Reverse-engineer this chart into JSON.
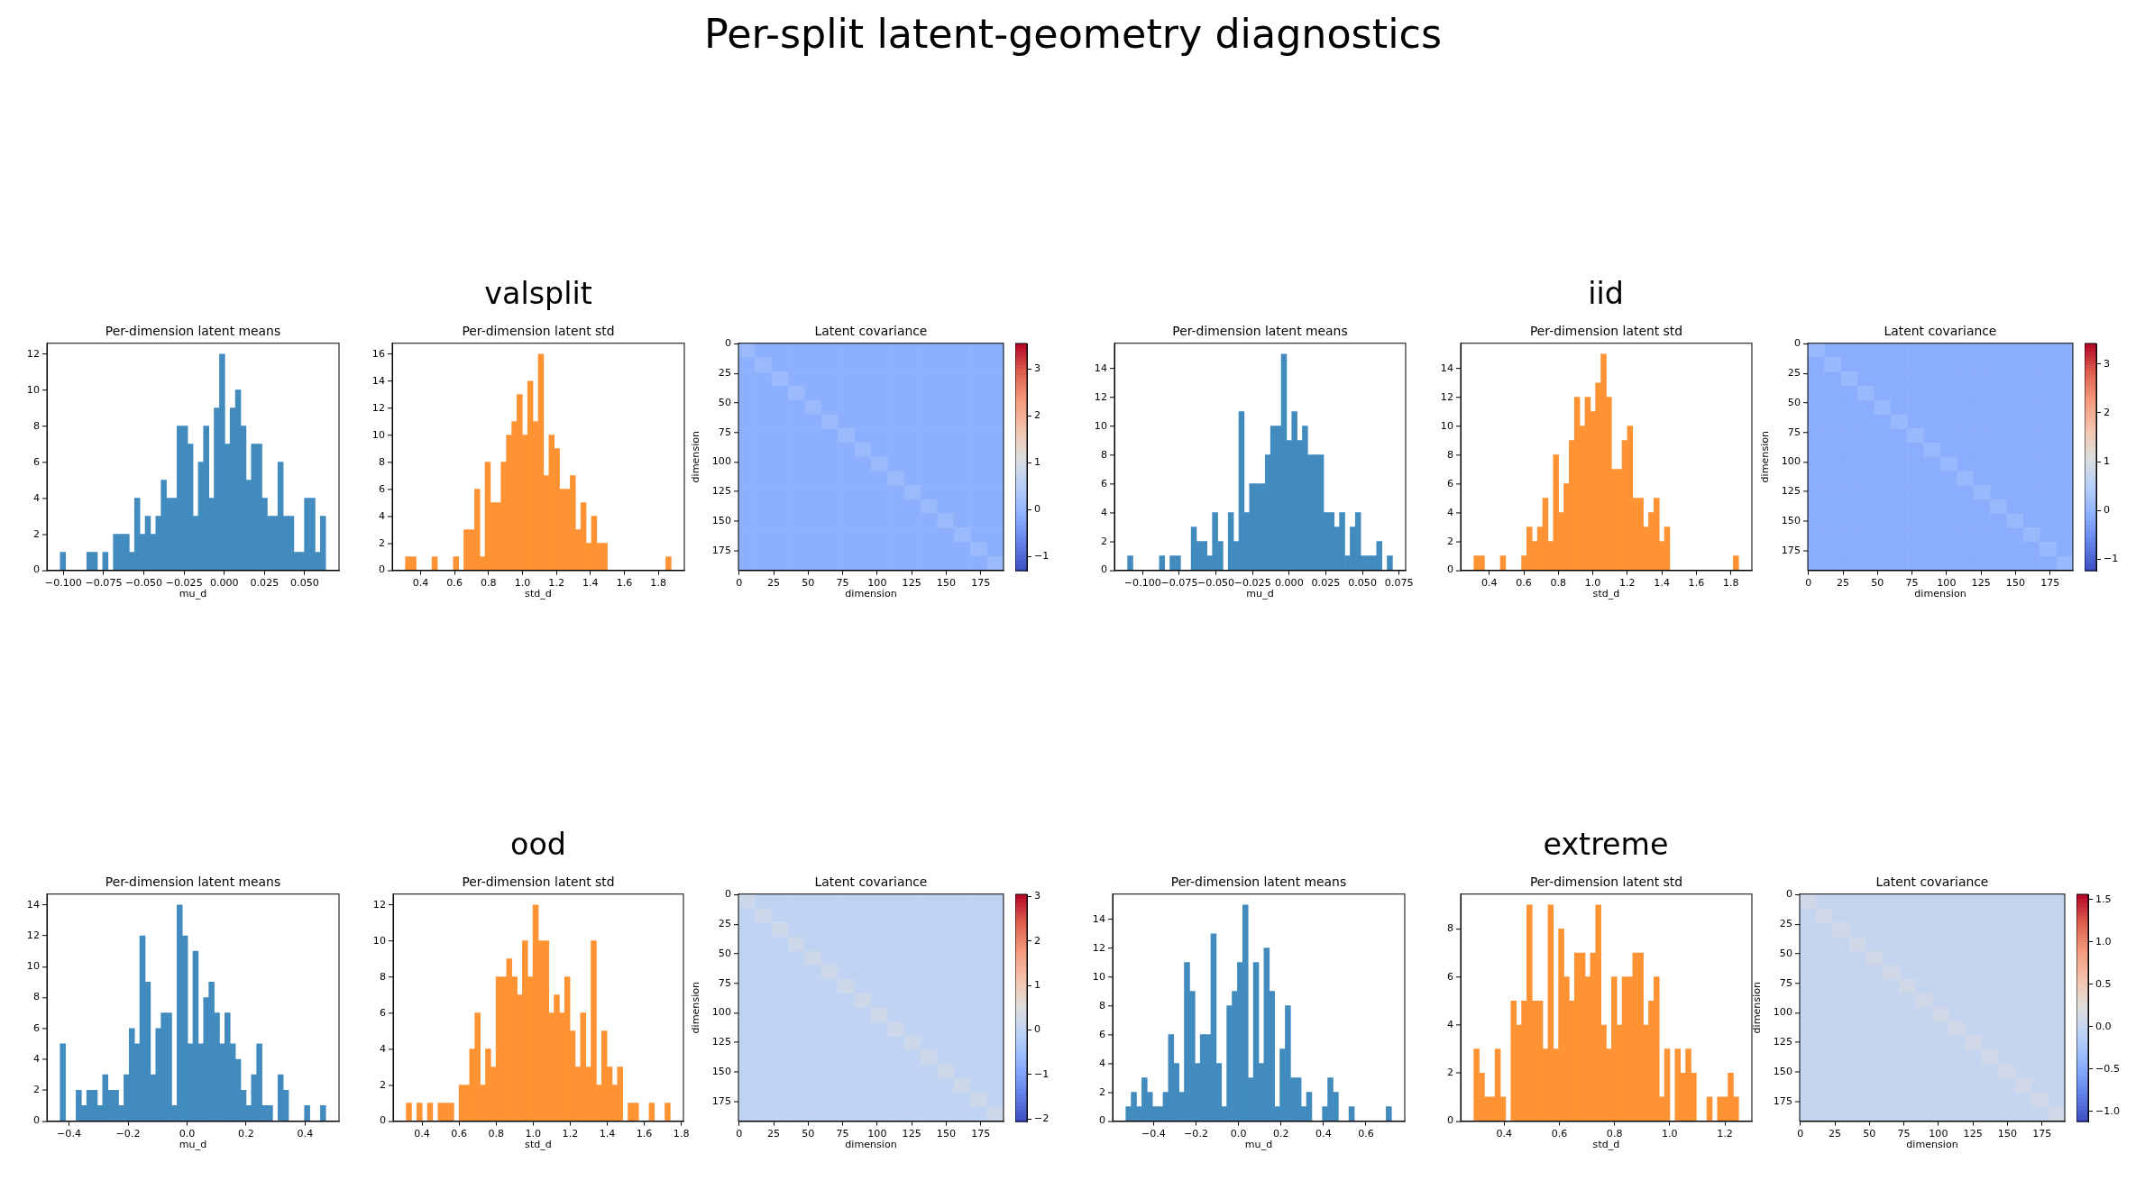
{
  "chart_data": [
    {
      "type": "other",
      "title": "Per-split latent-geometry diagnostics"
    },
    {
      "type": "other",
      "title": "valsplit"
    },
    {
      "type": "other",
      "title": "iid"
    },
    {
      "type": "histogram",
      "title": "Per-dimension latent means",
      "xlabel": "mu_d",
      "color": "#418bbf",
      "bins": [
        -0.102,
        -0.0987,
        -0.0954,
        -0.0921,
        -0.0888,
        -0.0855,
        -0.0822,
        -0.0789,
        -0.0756,
        -0.0723,
        -0.069,
        -0.0657,
        -0.0624,
        -0.0591,
        -0.0558,
        -0.0525,
        -0.0492,
        -0.0459,
        -0.0426,
        -0.0393,
        -0.036,
        -0.0327,
        -0.0294,
        -0.0261,
        -0.0228,
        -0.0195,
        -0.0162,
        -0.0129,
        -0.0096,
        -0.0063,
        -0.003,
        0.0003,
        0.0036,
        0.0069,
        0.0102,
        0.0135,
        0.0168,
        0.0201,
        0.0234,
        0.0267,
        0.03,
        0.0333,
        0.0366,
        0.0399,
        0.0432,
        0.0465,
        0.0498,
        0.0531,
        0.0564,
        0.0597,
        0.063
      ],
      "values": [
        1,
        0,
        0,
        0,
        0,
        1,
        1,
        0,
        1,
        0,
        2,
        2,
        2,
        1,
        4,
        2,
        3,
        2,
        3,
        5,
        4,
        4,
        8,
        8,
        7,
        3,
        6,
        8,
        4,
        9,
        12,
        7,
        9,
        10,
        8,
        5,
        7,
        7,
        4,
        3,
        3,
        6,
        3,
        3,
        1,
        1,
        4,
        4,
        1,
        3
      ],
      "xlim": [
        -0.1103,
        0.0713
      ],
      "ylim": [
        0,
        12.6
      ],
      "xticks": [
        {
          "value": -0.1,
          "label": "−0.100"
        },
        {
          "value": -0.075,
          "label": "−0.075"
        },
        {
          "value": -0.05,
          "label": "−0.050"
        },
        {
          "value": -0.025,
          "label": "−0.025"
        },
        {
          "value": 0,
          "label": "0.000"
        },
        {
          "value": 0.025,
          "label": "0.025"
        },
        {
          "value": 0.05,
          "label": "0.050"
        }
      ],
      "yticks": [
        0,
        2,
        4,
        6,
        8,
        10,
        12
      ]
    },
    {
      "type": "histogram",
      "title": "Per-dimension latent std",
      "xlabel": "std_d",
      "color": "#ff9232",
      "bins": [
        0.311,
        0.342,
        0.374,
        0.405,
        0.436,
        0.467,
        0.499,
        0.53,
        0.561,
        0.593,
        0.624,
        0.655,
        0.686,
        0.718,
        0.749,
        0.78,
        0.811,
        0.843,
        0.874,
        0.905,
        0.937,
        0.968,
        0.999,
        1.03,
        1.062,
        1.093,
        1.124,
        1.156,
        1.187,
        1.218,
        1.249,
        1.281,
        1.312,
        1.343,
        1.375,
        1.406,
        1.437,
        1.468,
        1.5,
        1.531,
        1.562,
        1.593,
        1.625,
        1.656,
        1.687,
        1.719,
        1.75,
        1.781,
        1.812,
        1.844,
        1.875
      ],
      "values": [
        1,
        1,
        0,
        0,
        0,
        1,
        0,
        0,
        0,
        1,
        0,
        3,
        3,
        6,
        1,
        8,
        5,
        5,
        8,
        10,
        11,
        13,
        10,
        14,
        11,
        16,
        7,
        10,
        9,
        6,
        6,
        7,
        3,
        5,
        2,
        4,
        2,
        2,
        0,
        0,
        0,
        0,
        0,
        0,
        0,
        0,
        0,
        0,
        0,
        1
      ],
      "xlim": [
        0.233,
        1.953
      ],
      "ylim": [
        0,
        16.8
      ],
      "xticks": [
        0.4,
        0.6,
        0.8,
        {
          "value": 1,
          "label": "1.0"
        },
        1.2,
        1.4,
        1.6,
        1.8
      ],
      "yticks": [
        0,
        2,
        4,
        6,
        8,
        10,
        12,
        14,
        16
      ]
    },
    {
      "type": "heatmap",
      "title": "Latent covariance",
      "xlabel": "dimension",
      "ylabel": "dimension",
      "cells": [
        [
          0.1,
          -0.1,
          -0.1,
          -0.1,
          -0.1,
          -0.1,
          -0.1,
          -0.1,
          -0.1,
          -0.1,
          -0.1,
          -0.1,
          -0.1,
          -0.1,
          -0.1,
          -0.1
        ],
        [
          -0.1,
          0.1,
          -0.1,
          -0.1,
          -0.1,
          -0.1,
          -0.1,
          -0.1,
          -0.1,
          -0.1,
          -0.1,
          -0.1,
          -0.1,
          -0.1,
          -0.1,
          -0.1
        ],
        [
          -0.1,
          -0.1,
          0.1,
          -0.1,
          -0.1,
          -0.1,
          -0.1,
          -0.1,
          -0.1,
          -0.1,
          -0.1,
          -0.1,
          -0.1,
          -0.1,
          -0.1,
          -0.1
        ],
        [
          -0.1,
          -0.1,
          -0.1,
          0.1,
          -0.1,
          -0.1,
          -0.1,
          -0.1,
          -0.1,
          -0.1,
          -0.1,
          -0.1,
          -0.1,
          -0.1,
          -0.1,
          -0.1
        ],
        [
          -0.1,
          -0.1,
          -0.1,
          -0.1,
          0.1,
          -0.1,
          -0.1,
          -0.1,
          -0.1,
          -0.1,
          -0.1,
          -0.1,
          -0.1,
          -0.1,
          -0.1,
          -0.1
        ],
        [
          -0.1,
          -0.1,
          -0.1,
          -0.1,
          -0.1,
          0.1,
          -0.1,
          -0.1,
          -0.1,
          -0.1,
          -0.1,
          -0.1,
          -0.1,
          -0.1,
          -0.1,
          -0.1
        ],
        [
          -0.1,
          -0.1,
          -0.1,
          -0.1,
          -0.1,
          -0.1,
          0.1,
          -0.1,
          -0.1,
          -0.1,
          -0.1,
          -0.1,
          -0.1,
          -0.1,
          -0.1,
          -0.1
        ],
        [
          -0.1,
          -0.1,
          -0.1,
          -0.1,
          -0.1,
          -0.1,
          -0.1,
          0.1,
          -0.1,
          -0.1,
          -0.1,
          -0.1,
          -0.1,
          -0.1,
          -0.1,
          -0.1
        ],
        [
          -0.1,
          -0.1,
          -0.1,
          -0.1,
          -0.1,
          -0.1,
          -0.1,
          -0.1,
          0.1,
          -0.1,
          -0.1,
          -0.1,
          -0.1,
          -0.1,
          -0.1,
          -0.1
        ],
        [
          -0.1,
          -0.1,
          -0.1,
          -0.1,
          -0.1,
          -0.1,
          -0.1,
          -0.1,
          -0.1,
          0.1,
          -0.1,
          -0.1,
          -0.1,
          -0.1,
          -0.1,
          -0.1
        ],
        [
          -0.1,
          -0.1,
          -0.1,
          -0.1,
          -0.1,
          -0.1,
          -0.1,
          -0.1,
          -0.1,
          -0.1,
          0.1,
          -0.1,
          -0.1,
          -0.1,
          -0.1,
          -0.1
        ],
        [
          -0.1,
          -0.1,
          -0.1,
          -0.1,
          -0.1,
          -0.1,
          -0.1,
          -0.1,
          -0.1,
          -0.1,
          -0.1,
          0.1,
          -0.1,
          -0.1,
          -0.1,
          -0.1
        ],
        [
          -0.1,
          -0.1,
          -0.1,
          -0.1,
          -0.1,
          -0.1,
          -0.1,
          -0.1,
          -0.1,
          -0.1,
          -0.1,
          -0.1,
          0.1,
          -0.1,
          -0.1,
          -0.1
        ],
        [
          -0.1,
          -0.1,
          -0.1,
          -0.1,
          -0.1,
          -0.1,
          -0.1,
          -0.1,
          -0.1,
          -0.1,
          -0.1,
          -0.1,
          -0.1,
          0.1,
          -0.1,
          -0.1
        ],
        [
          -0.1,
          -0.1,
          -0.1,
          -0.1,
          -0.1,
          -0.1,
          -0.1,
          -0.1,
          -0.1,
          -0.1,
          -0.1,
          -0.1,
          -0.1,
          -0.1,
          0.1,
          -0.1
        ],
        [
          -0.1,
          -0.1,
          -0.1,
          -0.1,
          -0.1,
          -0.1,
          -0.1,
          -0.1,
          -0.1,
          -0.1,
          -0.1,
          -0.1,
          -0.1,
          -0.1,
          -0.1,
          0.1
        ]
      ],
      "xlim": [
        -0.5,
        191.5
      ],
      "ylim": [
        191.5,
        -0.5
      ],
      "xticks": [
        0,
        25,
        50,
        75,
        100,
        125,
        150,
        175
      ],
      "yticks": [
        0,
        25,
        50,
        75,
        100,
        125,
        150,
        175
      ],
      "clim": [
        -1.3,
        3.54
      ],
      "cticks": [
        {
          "value": -1,
          "label": "−1"
        },
        0,
        1,
        2,
        3
      ]
    },
    {
      "type": "histogram",
      "title": "Per-dimension latent means",
      "xlabel": "mu_d",
      "color": "#418bbf",
      "bins": [
        -0.1103,
        -0.1067,
        -0.1031,
        -0.0995,
        -0.0958,
        -0.0922,
        -0.0886,
        -0.085,
        -0.0814,
        -0.0778,
        -0.0741,
        -0.0705,
        -0.0669,
        -0.0633,
        -0.0597,
        -0.0561,
        -0.0524,
        -0.0488,
        -0.0452,
        -0.0416,
        -0.038,
        -0.0344,
        -0.0307,
        -0.0271,
        -0.0235,
        -0.0199,
        -0.0163,
        -0.0127,
        -0.0091,
        -0.0054,
        -0.0018,
        0.0018,
        0.0054,
        0.009,
        0.0126,
        0.0163,
        0.0199,
        0.0235,
        0.0271,
        0.0307,
        0.0343,
        0.038,
        0.0416,
        0.0452,
        0.0488,
        0.0524,
        0.056,
        0.0597,
        0.0633,
        0.0669,
        0.0705
      ],
      "values": [
        1,
        0,
        0,
        0,
        0,
        0,
        1,
        0,
        1,
        1,
        0,
        0,
        3,
        2,
        2,
        1,
        4,
        2,
        0,
        4,
        2,
        11,
        4,
        6,
        6,
        6,
        8,
        10,
        10,
        15,
        9,
        11,
        9,
        10,
        8,
        8,
        8,
        4,
        4,
        3,
        4,
        1,
        3,
        4,
        1,
        1,
        1,
        2,
        0,
        1
      ],
      "xlim": [
        -0.1193,
        0.0795
      ],
      "ylim": [
        0,
        15.75
      ],
      "xticks": [
        {
          "value": -0.1,
          "label": "−0.100"
        },
        {
          "value": -0.075,
          "label": "−0.075"
        },
        {
          "value": -0.05,
          "label": "−0.050"
        },
        {
          "value": -0.025,
          "label": "−0.025"
        },
        {
          "value": 0,
          "label": "0.000"
        },
        {
          "value": 0.025,
          "label": "0.025"
        },
        {
          "value": 0.05,
          "label": "0.050"
        },
        {
          "value": 0.075,
          "label": "0.075"
        }
      ],
      "yticks": [
        0,
        2,
        4,
        6,
        8,
        10,
        12,
        14
      ]
    },
    {
      "type": "histogram",
      "title": "Per-dimension latent std",
      "xlabel": "std_d",
      "color": "#ff9232",
      "bins": [
        0.311,
        0.342,
        0.372,
        0.403,
        0.434,
        0.464,
        0.495,
        0.526,
        0.556,
        0.587,
        0.618,
        0.648,
        0.679,
        0.71,
        0.74,
        0.771,
        0.802,
        0.832,
        0.863,
        0.894,
        0.924,
        0.955,
        0.986,
        1.016,
        1.047,
        1.078,
        1.108,
        1.139,
        1.17,
        1.2,
        1.231,
        1.262,
        1.293,
        1.323,
        1.354,
        1.385,
        1.415,
        1.446,
        1.477,
        1.507,
        1.538,
        1.569,
        1.599,
        1.63,
        1.661,
        1.691,
        1.722,
        1.753,
        1.783,
        1.814,
        1.845
      ],
      "values": [
        1,
        1,
        0,
        0,
        0,
        1,
        0,
        0,
        0,
        1,
        3,
        2,
        3,
        5,
        2,
        8,
        4,
        6,
        9,
        12,
        10,
        12,
        11,
        13,
        15,
        12,
        7,
        7,
        9,
        10,
        5,
        5,
        3,
        4,
        5,
        2,
        3,
        0,
        0,
        0,
        0,
        0,
        0,
        0,
        0,
        0,
        0,
        0,
        0,
        1
      ],
      "xlim": [
        0.2343,
        1.9217
      ],
      "ylim": [
        0,
        15.75
      ],
      "xticks": [
        0.4,
        0.6,
        0.8,
        {
          "value": 1,
          "label": "1.0"
        },
        1.2,
        1.4,
        1.6,
        1.8
      ],
      "yticks": [
        0,
        2,
        4,
        6,
        8,
        10,
        12,
        14
      ]
    },
    {
      "type": "heatmap",
      "title": "Latent covariance",
      "xlabel": "dimension",
      "ylabel": "dimension",
      "cells": [
        [
          0.1,
          -0.1,
          -0.1,
          -0.1,
          -0.1,
          -0.1,
          -0.1,
          -0.1,
          -0.1,
          -0.1,
          -0.1,
          -0.1,
          -0.1,
          -0.1,
          -0.1,
          -0.1
        ],
        [
          -0.1,
          0.1,
          -0.1,
          -0.1,
          -0.1,
          -0.1,
          -0.1,
          -0.1,
          -0.1,
          -0.1,
          -0.1,
          -0.1,
          -0.1,
          -0.1,
          -0.1,
          -0.1
        ],
        [
          -0.1,
          -0.1,
          0.1,
          -0.1,
          -0.1,
          -0.1,
          -0.1,
          -0.1,
          -0.1,
          -0.1,
          -0.1,
          -0.1,
          -0.1,
          -0.1,
          -0.1,
          -0.1
        ],
        [
          -0.1,
          -0.1,
          -0.1,
          0.1,
          -0.1,
          -0.1,
          -0.1,
          -0.1,
          -0.1,
          -0.1,
          -0.1,
          -0.1,
          -0.1,
          -0.1,
          -0.1,
          -0.1
        ],
        [
          -0.1,
          -0.1,
          -0.1,
          -0.1,
          0.1,
          -0.1,
          -0.1,
          -0.1,
          -0.1,
          -0.1,
          -0.1,
          -0.1,
          -0.1,
          -0.1,
          -0.1,
          -0.1
        ],
        [
          -0.1,
          -0.1,
          -0.1,
          -0.1,
          -0.1,
          0.1,
          -0.1,
          -0.1,
          -0.1,
          -0.1,
          -0.1,
          -0.1,
          -0.1,
          -0.1,
          -0.1,
          -0.1
        ],
        [
          -0.1,
          -0.1,
          -0.1,
          -0.1,
          -0.1,
          -0.1,
          0.1,
          -0.1,
          -0.1,
          -0.1,
          -0.1,
          -0.1,
          -0.1,
          -0.1,
          -0.1,
          -0.1
        ],
        [
          -0.1,
          -0.1,
          -0.1,
          -0.1,
          -0.1,
          -0.1,
          -0.1,
          0.1,
          -0.1,
          -0.1,
          -0.1,
          -0.1,
          -0.1,
          -0.1,
          -0.1,
          -0.1
        ],
        [
          -0.1,
          -0.1,
          -0.1,
          -0.1,
          -0.1,
          -0.1,
          -0.1,
          -0.1,
          0.1,
          -0.1,
          -0.1,
          -0.1,
          -0.1,
          -0.1,
          -0.1,
          -0.1
        ],
        [
          -0.1,
          -0.1,
          -0.1,
          -0.1,
          -0.1,
          -0.1,
          -0.1,
          -0.1,
          -0.1,
          0.1,
          -0.1,
          -0.1,
          -0.1,
          -0.1,
          -0.1,
          -0.1
        ],
        [
          -0.1,
          -0.1,
          -0.1,
          -0.1,
          -0.1,
          -0.1,
          -0.1,
          -0.1,
          -0.1,
          -0.1,
          0.1,
          -0.1,
          -0.1,
          -0.1,
          -0.1,
          -0.1
        ],
        [
          -0.1,
          -0.1,
          -0.1,
          -0.1,
          -0.1,
          -0.1,
          -0.1,
          -0.1,
          -0.1,
          -0.1,
          -0.1,
          0.1,
          -0.1,
          -0.1,
          -0.1,
          -0.1
        ],
        [
          -0.1,
          -0.1,
          -0.1,
          -0.1,
          -0.1,
          -0.1,
          -0.1,
          -0.1,
          -0.1,
          -0.1,
          -0.1,
          -0.1,
          0.1,
          -0.1,
          -0.1,
          -0.1
        ],
        [
          -0.1,
          -0.1,
          -0.1,
          -0.1,
          -0.1,
          -0.1,
          -0.1,
          -0.1,
          -0.1,
          -0.1,
          -0.1,
          -0.1,
          -0.1,
          0.1,
          -0.1,
          -0.1
        ],
        [
          -0.1,
          -0.1,
          -0.1,
          -0.1,
          -0.1,
          -0.1,
          -0.1,
          -0.1,
          -0.1,
          -0.1,
          -0.1,
          -0.1,
          -0.1,
          -0.1,
          0.1,
          -0.1
        ],
        [
          -0.1,
          -0.1,
          -0.1,
          -0.1,
          -0.1,
          -0.1,
          -0.1,
          -0.1,
          -0.1,
          -0.1,
          -0.1,
          -0.1,
          -0.1,
          -0.1,
          -0.1,
          0.1
        ]
      ],
      "xlim": [
        -0.5,
        191.5
      ],
      "ylim": [
        191.5,
        -0.5
      ],
      "xticks": [
        0,
        25,
        50,
        75,
        100,
        125,
        150,
        175
      ],
      "yticks": [
        0,
        25,
        50,
        75,
        100,
        125,
        150,
        175
      ],
      "clim": [
        -1.23,
        3.42
      ],
      "cticks": [
        {
          "value": -1,
          "label": "−1"
        },
        0,
        1,
        2,
        3
      ]
    },
    {
      "type": "other",
      "title": "ood"
    },
    {
      "type": "other",
      "title": "extreme"
    },
    {
      "type": "histogram",
      "title": "Per-dimension latent means",
      "xlabel": "mu_d",
      "color": "#418bbf",
      "bins": [
        -0.43,
        -0.412,
        -0.394,
        -0.376,
        -0.358,
        -0.34,
        -0.322,
        -0.304,
        -0.286,
        -0.268,
        -0.25,
        -0.232,
        -0.214,
        -0.196,
        -0.178,
        -0.16,
        -0.142,
        -0.124,
        -0.106,
        -0.088,
        -0.07,
        -0.052,
        -0.034,
        -0.016,
        0.002,
        0.02,
        0.038,
        0.056,
        0.074,
        0.092,
        0.11,
        0.128,
        0.146,
        0.164,
        0.182,
        0.2,
        0.218,
        0.236,
        0.254,
        0.272,
        0.29,
        0.308,
        0.326,
        0.344,
        0.362,
        0.38,
        0.398,
        0.416,
        0.434,
        0.452,
        0.47
      ],
      "values": [
        5,
        0,
        0,
        2,
        1,
        2,
        2,
        1,
        3,
        2,
        2,
        1,
        3,
        6,
        5,
        12,
        9,
        3,
        6,
        7,
        7,
        1,
        14,
        12,
        5,
        11,
        5,
        8,
        9,
        7,
        5,
        7,
        5,
        4,
        2,
        1,
        3,
        5,
        1,
        1,
        0,
        3,
        2,
        0,
        0,
        0,
        1,
        0,
        0,
        1
      ],
      "xlim": [
        -0.475,
        0.515
      ],
      "ylim": [
        0,
        14.7
      ],
      "xticks": [
        {
          "value": -0.4,
          "label": "−0.4"
        },
        {
          "value": -0.2,
          "label": "−0.2"
        },
        {
          "value": 0,
          "label": "0.0"
        },
        0.2,
        0.4
      ],
      "yticks": [
        0,
        2,
        4,
        6,
        8,
        10,
        12,
        14
      ]
    },
    {
      "type": "histogram",
      "title": "Per-dimension latent std",
      "xlabel": "std_d",
      "color": "#ff9232",
      "bins": [
        0.315,
        0.3435,
        0.372,
        0.4005,
        0.429,
        0.4575,
        0.486,
        0.5145,
        0.543,
        0.5715,
        0.6,
        0.6285,
        0.657,
        0.6855,
        0.714,
        0.7425,
        0.771,
        0.7995,
        0.828,
        0.8565,
        0.885,
        0.9135,
        0.942,
        0.9705,
        0.999,
        1.0275,
        1.056,
        1.0845,
        1.113,
        1.1415,
        1.17,
        1.1985,
        1.227,
        1.2555,
        1.284,
        1.3125,
        1.341,
        1.3695,
        1.398,
        1.4265,
        1.455,
        1.4835,
        1.512,
        1.5405,
        1.569,
        1.5975,
        1.626,
        1.6545,
        1.683,
        1.7115,
        1.74
      ],
      "values": [
        1,
        0,
        1,
        0,
        1,
        0,
        1,
        1,
        1,
        0,
        2,
        2,
        4,
        6,
        2,
        4,
        3,
        8,
        8,
        9,
        8,
        7,
        10,
        8,
        12,
        10,
        10,
        6,
        7,
        6,
        8,
        5,
        3,
        6,
        3,
        10,
        2,
        5,
        3,
        2,
        3,
        0,
        1,
        1,
        0,
        0,
        1,
        0,
        0,
        1
      ],
      "xlim": [
        0.2438,
        1.8113
      ],
      "ylim": [
        0,
        12.6
      ],
      "xticks": [
        0.4,
        0.6,
        0.8,
        {
          "value": 1,
          "label": "1.0"
        },
        1.2,
        1.4,
        1.6,
        1.8
      ],
      "yticks": [
        0,
        2,
        4,
        6,
        8,
        10,
        12
      ]
    },
    {
      "type": "heatmap",
      "title": "Latent covariance",
      "xlabel": "dimension",
      "ylabel": "dimension",
      "cells": [
        [
          0.2,
          0,
          0,
          0,
          0,
          0,
          0,
          0,
          0,
          0,
          0,
          0,
          0,
          0,
          0,
          0
        ],
        [
          0,
          0.2,
          0,
          0,
          0,
          0,
          0,
          0,
          0,
          0,
          0,
          0,
          0,
          0,
          0,
          0
        ],
        [
          0,
          0,
          0.2,
          0,
          0,
          0,
          0,
          0,
          0,
          0,
          0,
          0,
          0,
          0,
          0,
          0
        ],
        [
          0,
          0,
          0,
          0.2,
          0,
          0,
          0,
          0,
          0,
          0,
          0,
          0,
          0,
          0,
          0,
          0
        ],
        [
          0,
          0,
          0,
          0,
          0.2,
          0,
          0,
          0,
          0,
          0,
          0,
          0,
          0,
          0,
          0,
          0
        ],
        [
          0,
          0,
          0,
          0,
          0,
          0.2,
          0,
          0,
          0,
          0,
          0,
          0,
          0,
          0,
          0,
          0
        ],
        [
          0,
          0,
          0,
          0,
          0,
          0,
          0.2,
          0,
          0,
          0,
          0,
          0,
          0,
          0,
          0,
          0
        ],
        [
          0,
          0,
          0,
          0,
          0,
          0,
          0,
          0.2,
          0,
          0,
          0,
          0,
          0,
          0,
          0,
          0
        ],
        [
          0,
          0,
          0,
          0,
          0,
          0,
          0,
          0,
          0.2,
          0,
          0,
          0,
          0,
          0,
          0,
          0
        ],
        [
          0,
          0,
          0,
          0,
          0,
          0,
          0,
          0,
          0,
          0.2,
          0,
          0,
          0,
          0,
          0,
          0
        ],
        [
          0,
          0,
          0,
          0,
          0,
          0,
          0,
          0,
          0,
          0,
          0.2,
          0,
          0,
          0,
          0,
          0
        ],
        [
          0,
          0,
          0,
          0,
          0,
          0,
          0,
          0,
          0,
          0,
          0,
          0.2,
          0,
          0,
          0,
          0
        ],
        [
          0,
          0,
          0,
          0,
          0,
          0,
          0,
          0,
          0,
          0,
          0,
          0,
          0.2,
          0,
          0,
          0
        ],
        [
          0,
          0,
          0,
          0,
          0,
          0,
          0,
          0,
          0,
          0,
          0,
          0,
          0,
          0.2,
          0,
          0
        ],
        [
          0,
          0,
          0,
          0,
          0,
          0,
          0,
          0,
          0,
          0,
          0,
          0,
          0,
          0,
          0.2,
          0
        ],
        [
          0,
          0,
          0,
          0,
          0,
          0,
          0,
          0,
          0,
          0,
          0,
          0,
          0,
          0,
          0,
          0.2
        ]
      ],
      "xlim": [
        -0.5,
        191.5
      ],
      "ylim": [
        191.5,
        -0.5
      ],
      "xticks": [
        0,
        25,
        50,
        75,
        100,
        125,
        150,
        175
      ],
      "yticks": [
        0,
        25,
        50,
        75,
        100,
        125,
        150,
        175
      ],
      "clim": [
        -2.06,
        3.05
      ],
      "cticks": [
        {
          "value": -2,
          "label": "−2"
        },
        {
          "value": -1,
          "label": "−1"
        },
        0,
        1,
        2,
        3
      ]
    },
    {
      "type": "histogram",
      "title": "Per-dimension latent means",
      "xlabel": "mu_d",
      "color": "#418bbf",
      "bins": [
        -0.53,
        -0.505,
        -0.48,
        -0.455,
        -0.43,
        -0.405,
        -0.38,
        -0.355,
        -0.33,
        -0.305,
        -0.28,
        -0.255,
        -0.23,
        -0.205,
        -0.18,
        -0.155,
        -0.13,
        -0.105,
        -0.08,
        -0.055,
        -0.03,
        -0.005,
        0.02,
        0.045,
        0.07,
        0.095,
        0.12,
        0.145,
        0.17,
        0.195,
        0.22,
        0.245,
        0.27,
        0.295,
        0.32,
        0.345,
        0.37,
        0.395,
        0.42,
        0.445,
        0.47,
        0.495,
        0.52,
        0.545,
        0.57,
        0.595,
        0.62,
        0.645,
        0.67,
        0.695,
        0.72
      ],
      "values": [
        1,
        2,
        1,
        3,
        2,
        1,
        1,
        2,
        6,
        4,
        2,
        11,
        9,
        4,
        6,
        6,
        13,
        4,
        1,
        8,
        9,
        11,
        15,
        3,
        11,
        4,
        12,
        9,
        1,
        5,
        8,
        3,
        3,
        1,
        2,
        0,
        0,
        1,
        3,
        2,
        0,
        0,
        1,
        0,
        0,
        0,
        0,
        0,
        0,
        1
      ],
      "xlim": [
        -0.5925,
        0.7825
      ],
      "ylim": [
        0,
        15.75
      ],
      "xticks": [
        {
          "value": -0.4,
          "label": "−0.4"
        },
        {
          "value": -0.2,
          "label": "−0.2"
        },
        {
          "value": 0,
          "label": "0.0"
        },
        0.2,
        0.4,
        0.6
      ],
      "yticks": [
        0,
        2,
        4,
        6,
        8,
        10,
        12,
        14
      ]
    },
    {
      "type": "histogram",
      "title": "Per-dimension latent std",
      "xlabel": "std_d",
      "color": "#ff9232",
      "bins": [
        0.29,
        0.3092,
        0.3284,
        0.3476,
        0.3668,
        0.386,
        0.4052,
        0.4244,
        0.4436,
        0.4628,
        0.482,
        0.5012,
        0.5204,
        0.5396,
        0.5588,
        0.578,
        0.5972,
        0.6164,
        0.6356,
        0.6548,
        0.674,
        0.6932,
        0.7124,
        0.7316,
        0.7508,
        0.77,
        0.7892,
        0.8084,
        0.8276,
        0.8468,
        0.866,
        0.8852,
        0.9044,
        0.9236,
        0.9428,
        0.962,
        0.9812,
        1.0004,
        1.0196,
        1.0388,
        1.058,
        1.0772,
        1.0964,
        1.1156,
        1.1348,
        1.154,
        1.1732,
        1.1924,
        1.2116,
        1.2308,
        1.25
      ],
      "values": [
        3,
        2,
        1,
        1,
        3,
        1,
        0,
        5,
        4,
        5,
        9,
        5,
        5,
        3,
        9,
        3,
        8,
        6,
        5,
        7,
        7,
        6,
        7,
        9,
        4,
        3,
        6,
        4,
        6,
        6,
        7,
        7,
        4,
        5,
        6,
        1,
        3,
        0,
        3,
        2,
        3,
        2,
        0,
        0,
        1,
        0,
        1,
        1,
        2,
        1
      ],
      "xlim": [
        0.242,
        1.298
      ],
      "ylim": [
        0,
        9.45
      ],
      "xticks": [
        0.4,
        0.6,
        0.8,
        {
          "value": 1,
          "label": "1.0"
        },
        1.2
      ],
      "yticks": [
        0,
        2,
        4,
        6,
        8
      ]
    },
    {
      "type": "heatmap",
      "title": "Latent covariance",
      "xlabel": "dimension",
      "ylabel": "dimension",
      "cells": [
        [
          0.1,
          0,
          0,
          0,
          0,
          0,
          0,
          0,
          0,
          0,
          0,
          0,
          0,
          0,
          0,
          0
        ],
        [
          0,
          0.1,
          0,
          0,
          0,
          0,
          0,
          0,
          0,
          0,
          0,
          0,
          0,
          0,
          0,
          0
        ],
        [
          0,
          0,
          0.1,
          0,
          0,
          0,
          0,
          0,
          0,
          0,
          0,
          0,
          0,
          0,
          0,
          0
        ],
        [
          0,
          0,
          0,
          0.1,
          0,
          0,
          0,
          0,
          0,
          0,
          0,
          0,
          0,
          0,
          0,
          0
        ],
        [
          0,
          0,
          0,
          0,
          0.1,
          0,
          0,
          0,
          0,
          0,
          0,
          0,
          0,
          0,
          0,
          0
        ],
        [
          0,
          0,
          0,
          0,
          0,
          0.1,
          0,
          0,
          0,
          0,
          0,
          0,
          0,
          0,
          0,
          0
        ],
        [
          0,
          0,
          0,
          0,
          0,
          0,
          0.1,
          0,
          0,
          0,
          0,
          0,
          0,
          0,
          0,
          0
        ],
        [
          0,
          0,
          0,
          0,
          0,
          0,
          0,
          0.1,
          0,
          0,
          0,
          0,
          0,
          0,
          0,
          0
        ],
        [
          0,
          0,
          0,
          0,
          0,
          0,
          0,
          0,
          0.1,
          0,
          0,
          0,
          0,
          0,
          0,
          0
        ],
        [
          0,
          0,
          0,
          0,
          0,
          0,
          0,
          0,
          0,
          0.1,
          0,
          0,
          0,
          0,
          0,
          0
        ],
        [
          0,
          0,
          0,
          0,
          0,
          0,
          0,
          0,
          0,
          0,
          0.1,
          0,
          0,
          0,
          0,
          0
        ],
        [
          0,
          0,
          0,
          0,
          0,
          0,
          0,
          0,
          0,
          0,
          0,
          0.1,
          0,
          0,
          0,
          0
        ],
        [
          0,
          0,
          0,
          0,
          0,
          0,
          0,
          0,
          0,
          0,
          0,
          0,
          0.1,
          0,
          0,
          0
        ],
        [
          0,
          0,
          0,
          0,
          0,
          0,
          0,
          0,
          0,
          0,
          0,
          0,
          0,
          0.1,
          0,
          0
        ],
        [
          0,
          0,
          0,
          0,
          0,
          0,
          0,
          0,
          0,
          0,
          0,
          0,
          0,
          0,
          0.1,
          0
        ],
        [
          0,
          0,
          0,
          0,
          0,
          0,
          0,
          0,
          0,
          0,
          0,
          0,
          0,
          0,
          0,
          0.1
        ]
      ],
      "xlim": [
        -0.5,
        191.5
      ],
      "ylim": [
        191.5,
        -0.5
      ],
      "xticks": [
        0,
        25,
        50,
        75,
        100,
        125,
        150,
        175
      ],
      "yticks": [
        0,
        25,
        50,
        75,
        100,
        125,
        150,
        175
      ],
      "clim": [
        -1.12,
        1.56
      ],
      "cticks": [
        {
          "value": -1,
          "label": "−1.0"
        },
        {
          "value": -0.5,
          "label": "−0.5"
        },
        {
          "value": 0,
          "label": "0.0"
        },
        0.5,
        {
          "value": 1,
          "label": "1.0"
        },
        1.5
      ]
    }
  ]
}
